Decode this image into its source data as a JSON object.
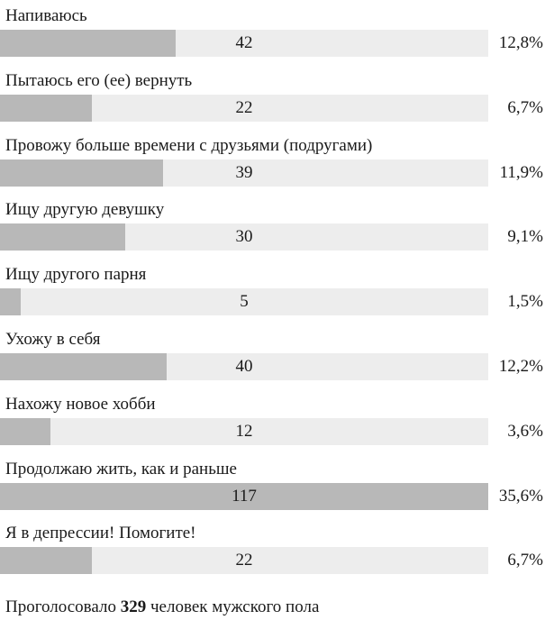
{
  "chart_data": {
    "type": "bar",
    "orientation": "horizontal",
    "categories": [
      "Напиваюсь",
      "Пытаюсь его (ее) вернуть",
      "Провожу больше времени с друзьями (подругами)",
      "Ищу другую девушку",
      "Ищу другого парня",
      "Ухожу в себя",
      "Нахожу новое хобби",
      "Продолжаю жить, как и раньше",
      "Я в депрессии! Помогите!"
    ],
    "values": [
      42,
      22,
      39,
      30,
      5,
      40,
      12,
      117,
      22
    ],
    "percents": [
      "12,8%",
      "6,7%",
      "11,9%",
      "9,1%",
      "1,5%",
      "12,2%",
      "3,6%",
      "35,6%",
      "6,7%"
    ],
    "xlim": [
      0,
      117
    ],
    "grid": false,
    "legend": "none",
    "colors": {
      "track": "#ededed",
      "fill": "#b8b8b8",
      "text": "#1a1a1a"
    }
  },
  "footer": {
    "prefix": "Проголосовало ",
    "total": "329",
    "suffix": " человек мужского пола"
  }
}
